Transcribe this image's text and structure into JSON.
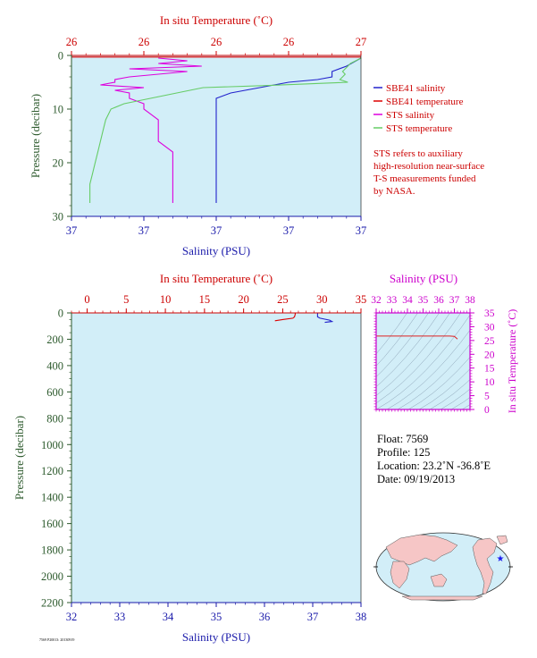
{
  "colors": {
    "plot_bg": "#d2eef8",
    "temperature_axis": "#cc0000",
    "salinity_axis": "#1a1aaa",
    "pressure_axis": "#2d5a2d",
    "ts_axis": "#cc00cc",
    "sbe41_salinity": "#2222cc",
    "sbe41_temperature": "#dd0000",
    "sts_salinity": "#dd00dd",
    "sts_temperature": "#66cc66"
  },
  "top_chart": {
    "temp_axis_label": "In situ Temperature (˚C)",
    "temp_tick_labels": [
      "26",
      "26",
      "26",
      "26",
      "27"
    ],
    "sal_axis_label": "Salinity (PSU)",
    "sal_tick_labels": [
      "37",
      "37",
      "37",
      "37",
      "37"
    ],
    "pressure_axis_label": "Pressure (decibar)",
    "pressure_tick_labels": [
      "0",
      "10",
      "20",
      "30"
    ],
    "legend": {
      "sbe41_salinity": "SBE41 salinity",
      "sbe41_temperature": "SBE41 temperature",
      "sts_salinity": "STS salinity",
      "sts_temperature": "STS temperature"
    },
    "note_lines": [
      "STS refers to auxiliary",
      "high-resolution near-surface",
      "T-S measurements funded",
      "by NASA."
    ]
  },
  "bottom_chart": {
    "temp_axis_label": "In situ Temperature (˚C)",
    "temp_tick_labels": [
      "0",
      "5",
      "10",
      "15",
      "20",
      "25",
      "30",
      "35"
    ],
    "sal_axis_label": "Salinity (PSU)",
    "sal_tick_labels": [
      "32",
      "33",
      "34",
      "35",
      "36",
      "37",
      "38"
    ],
    "pressure_axis_label": "Pressure (decibar)",
    "pressure_tick_labels": [
      "0",
      "200",
      "400",
      "600",
      "800",
      "1000",
      "1200",
      "1400",
      "1600",
      "1800",
      "2000",
      "2200"
    ]
  },
  "ts_diagram": {
    "sal_axis_label": "Salinity (PSU)",
    "sal_tick_labels": [
      "32",
      "33",
      "34",
      "35",
      "36",
      "37",
      "38"
    ],
    "temp_axis_label": "In situ Temperature (˚C)",
    "temp_tick_labels": [
      "35",
      "30",
      "25",
      "20",
      "15",
      "10",
      "5",
      "0"
    ]
  },
  "info": {
    "float": "Float:  7569",
    "profile": "Profile:  125",
    "location": "Location:  23.2˚N  -36.8˚E",
    "date": "Date:  09/19/2013"
  },
  "footer_note": "7569 P20013: 20130919",
  "chart_data": [
    {
      "type": "line",
      "title": "",
      "x_top_label": "In situ Temperature (˚C)",
      "xlim_temperature": [
        25.85,
        26.95
      ],
      "x_bottom_label": "Salinity (PSU)",
      "xlim_salinity": [
        36.9,
        37.1
      ],
      "ylabel": "Pressure (decibar)",
      "ylim": [
        0,
        30
      ],
      "y_inverted": true,
      "series": [
        {
          "name": "SBE41 salinity",
          "axis": "salinity",
          "points": [
            [
              37.1,
              0.5
            ],
            [
              37.09,
              2
            ],
            [
              37.08,
              3
            ],
            [
              37.08,
              4
            ],
            [
              37.07,
              4.5
            ],
            [
              37.05,
              5
            ],
            [
              37.03,
              6
            ],
            [
              37.01,
              7
            ],
            [
              37.0,
              8
            ],
            [
              37.0,
              10
            ],
            [
              37.0,
              12
            ],
            [
              37.0,
              15
            ],
            [
              37.0,
              17
            ],
            [
              37.0,
              20
            ],
            [
              37.0,
              22
            ],
            [
              37.0,
              24
            ],
            [
              37.0,
              26
            ],
            [
              37.0,
              27.5
            ]
          ]
        },
        {
          "name": "SBE41 temperature",
          "axis": "temperature",
          "points": [
            [
              26.95,
              0.3
            ],
            [
              25.85,
              0.3
            ]
          ]
        },
        {
          "name": "STS salinity",
          "axis": "salinity",
          "points": [
            [
              36.96,
              0.5
            ],
            [
              36.98,
              1
            ],
            [
              36.96,
              1.5
            ],
            [
              36.99,
              2
            ],
            [
              36.94,
              2.5
            ],
            [
              36.98,
              3
            ],
            [
              36.96,
              3.5
            ],
            [
              36.94,
              4
            ],
            [
              36.93,
              4.5
            ],
            [
              36.93,
              5
            ],
            [
              36.92,
              5.5
            ],
            [
              36.95,
              6
            ],
            [
              36.93,
              6.5
            ],
            [
              36.94,
              7
            ],
            [
              36.94,
              8
            ],
            [
              36.95,
              9
            ],
            [
              36.95,
              10
            ],
            [
              36.96,
              12
            ],
            [
              36.96,
              14
            ],
            [
              36.96,
              16
            ],
            [
              36.97,
              18
            ],
            [
              36.97,
              20
            ],
            [
              36.97,
              22
            ],
            [
              36.97,
              24
            ],
            [
              36.97,
              26
            ],
            [
              36.97,
              27.5
            ]
          ]
        },
        {
          "name": "STS temperature",
          "axis": "temperature",
          "points": [
            [
              26.95,
              0.5
            ],
            [
              26.93,
              1
            ],
            [
              26.91,
              1.5
            ],
            [
              26.9,
              2
            ],
            [
              26.89,
              2.5
            ],
            [
              26.88,
              3
            ],
            [
              26.89,
              3.5
            ],
            [
              26.88,
              4
            ],
            [
              26.87,
              4.5
            ],
            [
              26.9,
              5
            ],
            [
              26.6,
              5.6
            ],
            [
              26.35,
              6
            ],
            [
              26.25,
              7
            ],
            [
              26.2,
              7.5
            ],
            [
              26.15,
              8
            ],
            [
              26.1,
              8.5
            ],
            [
              26.05,
              9
            ],
            [
              26.0,
              10
            ],
            [
              25.98,
              12
            ],
            [
              25.97,
              14
            ],
            [
              25.96,
              16
            ],
            [
              25.95,
              18
            ],
            [
              25.94,
              20
            ],
            [
              25.93,
              22
            ],
            [
              25.92,
              24
            ],
            [
              25.92,
              26
            ],
            [
              25.92,
              27.5
            ]
          ]
        }
      ]
    },
    {
      "type": "line",
      "title": "",
      "x_top_label": "In situ Temperature (˚C)",
      "xlim_temperature": [
        -2,
        35
      ],
      "x_bottom_label": "Salinity (PSU)",
      "xlim_salinity": [
        32,
        38
      ],
      "ylabel": "Pressure (decibar)",
      "ylim": [
        0,
        2200
      ],
      "y_inverted": true,
      "series": [
        {
          "name": "SBE41 salinity",
          "axis": "salinity",
          "points": [
            [
              37.1,
              0
            ],
            [
              37.1,
              10
            ],
            [
              37.1,
              30
            ],
            [
              37.15,
              40
            ],
            [
              37.35,
              55
            ],
            [
              37.4,
              65
            ],
            [
              37.25,
              72
            ]
          ]
        },
        {
          "name": "SBE41 temperature",
          "axis": "temperature",
          "points": [
            [
              26.6,
              0
            ],
            [
              26.6,
              10
            ],
            [
              26.5,
              30
            ],
            [
              26.3,
              40
            ],
            [
              25.0,
              50
            ],
            [
              24.0,
              60
            ]
          ]
        }
      ]
    },
    {
      "type": "scatter",
      "title": "",
      "xlabel": "Salinity (PSU)",
      "xlim": [
        32,
        38
      ],
      "ylabel": "In situ Temperature (˚C)",
      "ylim": [
        0,
        35
      ],
      "series": [
        {
          "name": "",
          "points": [
            [
              32.0,
              26.6
            ],
            [
              36.0,
              26.6
            ],
            [
              36.7,
              26.6
            ],
            [
              37.0,
              26.5
            ],
            [
              37.1,
              26.0
            ],
            [
              37.2,
              25.5
            ]
          ]
        }
      ]
    }
  ]
}
